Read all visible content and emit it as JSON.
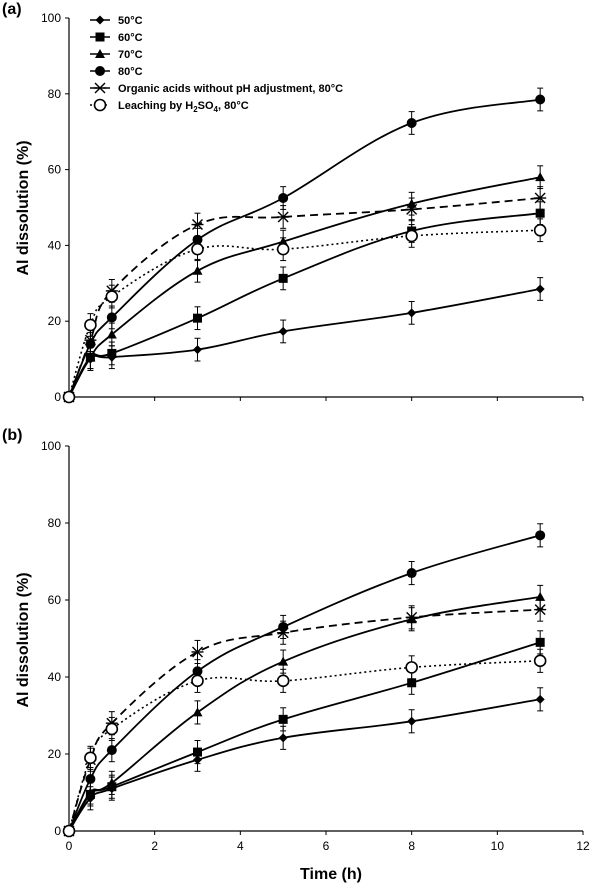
{
  "chart_data": [
    {
      "type": "line",
      "panel_label": "(a)",
      "xlabel": "",
      "ylabel": "Al dissolution (%)",
      "xlim": [
        0,
        12
      ],
      "ylim": [
        0,
        100
      ],
      "xticks": [],
      "yticks": [
        "0",
        "20",
        "40",
        "60",
        "80",
        "100"
      ],
      "legend_position": "top-left",
      "x": [
        0,
        0.5,
        1,
        3,
        5,
        8,
        11
      ],
      "series": [
        {
          "name": "50°C",
          "marker": "diamond",
          "dash": "solid",
          "values": [
            0,
            10,
            10.5,
            12.5,
            17.3,
            22.2,
            28.5
          ],
          "errors": [
            0,
            3,
            3,
            3,
            3,
            3,
            3
          ]
        },
        {
          "name": "60°C",
          "marker": "square",
          "dash": "solid",
          "values": [
            0,
            10.5,
            11.5,
            20.8,
            31.3,
            43.8,
            48.5
          ],
          "errors": [
            0,
            3,
            3,
            3,
            3,
            3,
            3
          ]
        },
        {
          "name": "70°C",
          "marker": "triangle",
          "dash": "solid",
          "values": [
            0,
            10.5,
            16.5,
            33.3,
            41,
            51,
            58
          ],
          "errors": [
            0,
            3,
            3,
            3,
            3,
            3,
            3
          ]
        },
        {
          "name": "80°C",
          "marker": "circle",
          "dash": "solid",
          "values": [
            0,
            14,
            21,
            41.5,
            52.5,
            72.3,
            78.5
          ],
          "errors": [
            0,
            3,
            3,
            3,
            3,
            3,
            3
          ]
        },
        {
          "name": "Organic acids without pH adjustment, 80°C",
          "marker": "star",
          "dash": "dashed",
          "values": [
            0,
            15,
            28,
            45.5,
            47.5,
            49.5,
            52.5
          ],
          "errors": [
            0,
            3,
            3,
            3,
            3,
            3,
            3
          ]
        },
        {
          "name": "Leaching by H2SO4, 80°C",
          "name_main": "Leaching by H",
          "name_sub": "2",
          "name_sub_tail": "SO",
          "name_sub2": "4",
          "name_tail": ", 80°C",
          "marker": "open-circle",
          "dash": "dotted",
          "values": [
            0,
            19,
            26.5,
            39,
            39,
            42.5,
            44
          ],
          "errors": [
            0,
            3,
            3,
            3,
            3,
            3,
            3
          ]
        }
      ]
    },
    {
      "type": "line",
      "panel_label": "(b)",
      "xlabel": "Time (h)",
      "ylabel": "Al dissolution (%)",
      "xlim": [
        0,
        12
      ],
      "ylim": [
        0,
        100
      ],
      "xticks": [
        "0",
        "2",
        "4",
        "6",
        "8",
        "10",
        "12"
      ],
      "yticks": [
        "0",
        "20",
        "40",
        "60",
        "80",
        "100"
      ],
      "x": [
        0,
        0.5,
        1,
        3,
        5,
        8,
        11
      ],
      "series": [
        {
          "name": "50°C",
          "marker": "diamond",
          "dash": "solid",
          "values": [
            0,
            8.5,
            11,
            18.5,
            24.2,
            28.5,
            34.2
          ],
          "errors": [
            0,
            3,
            3,
            3,
            3,
            3,
            3
          ]
        },
        {
          "name": "60°C",
          "marker": "square",
          "dash": "solid",
          "values": [
            0,
            9.5,
            11.5,
            20.5,
            29,
            38.5,
            49
          ],
          "errors": [
            0,
            3,
            3,
            3,
            3,
            3,
            3
          ]
        },
        {
          "name": "70°C",
          "marker": "triangle",
          "dash": "solid",
          "values": [
            0,
            10,
            12.5,
            30.8,
            44,
            55,
            60.8
          ],
          "errors": [
            0,
            3,
            3,
            3,
            3,
            3,
            3
          ]
        },
        {
          "name": "80°C",
          "marker": "circle",
          "dash": "solid",
          "values": [
            0,
            13.5,
            21,
            41.5,
            53,
            67,
            76.8
          ],
          "errors": [
            0,
            3,
            3,
            3,
            3,
            3,
            3
          ]
        },
        {
          "name": "Organic acids without pH adjustment, 80°C",
          "marker": "star",
          "dash": "dashed",
          "values": [
            0,
            18.5,
            28,
            46.5,
            51.5,
            55.5,
            57.5
          ],
          "errors": [
            0,
            3,
            3,
            3,
            3,
            3,
            3
          ]
        },
        {
          "name": "Leaching by H2SO4, 80°C",
          "marker": "open-circle",
          "dash": "dotted",
          "values": [
            0,
            19,
            26.5,
            39,
            39,
            42.5,
            44.2
          ],
          "errors": [
            0,
            3,
            3,
            3,
            3,
            3,
            3
          ]
        }
      ]
    }
  ]
}
